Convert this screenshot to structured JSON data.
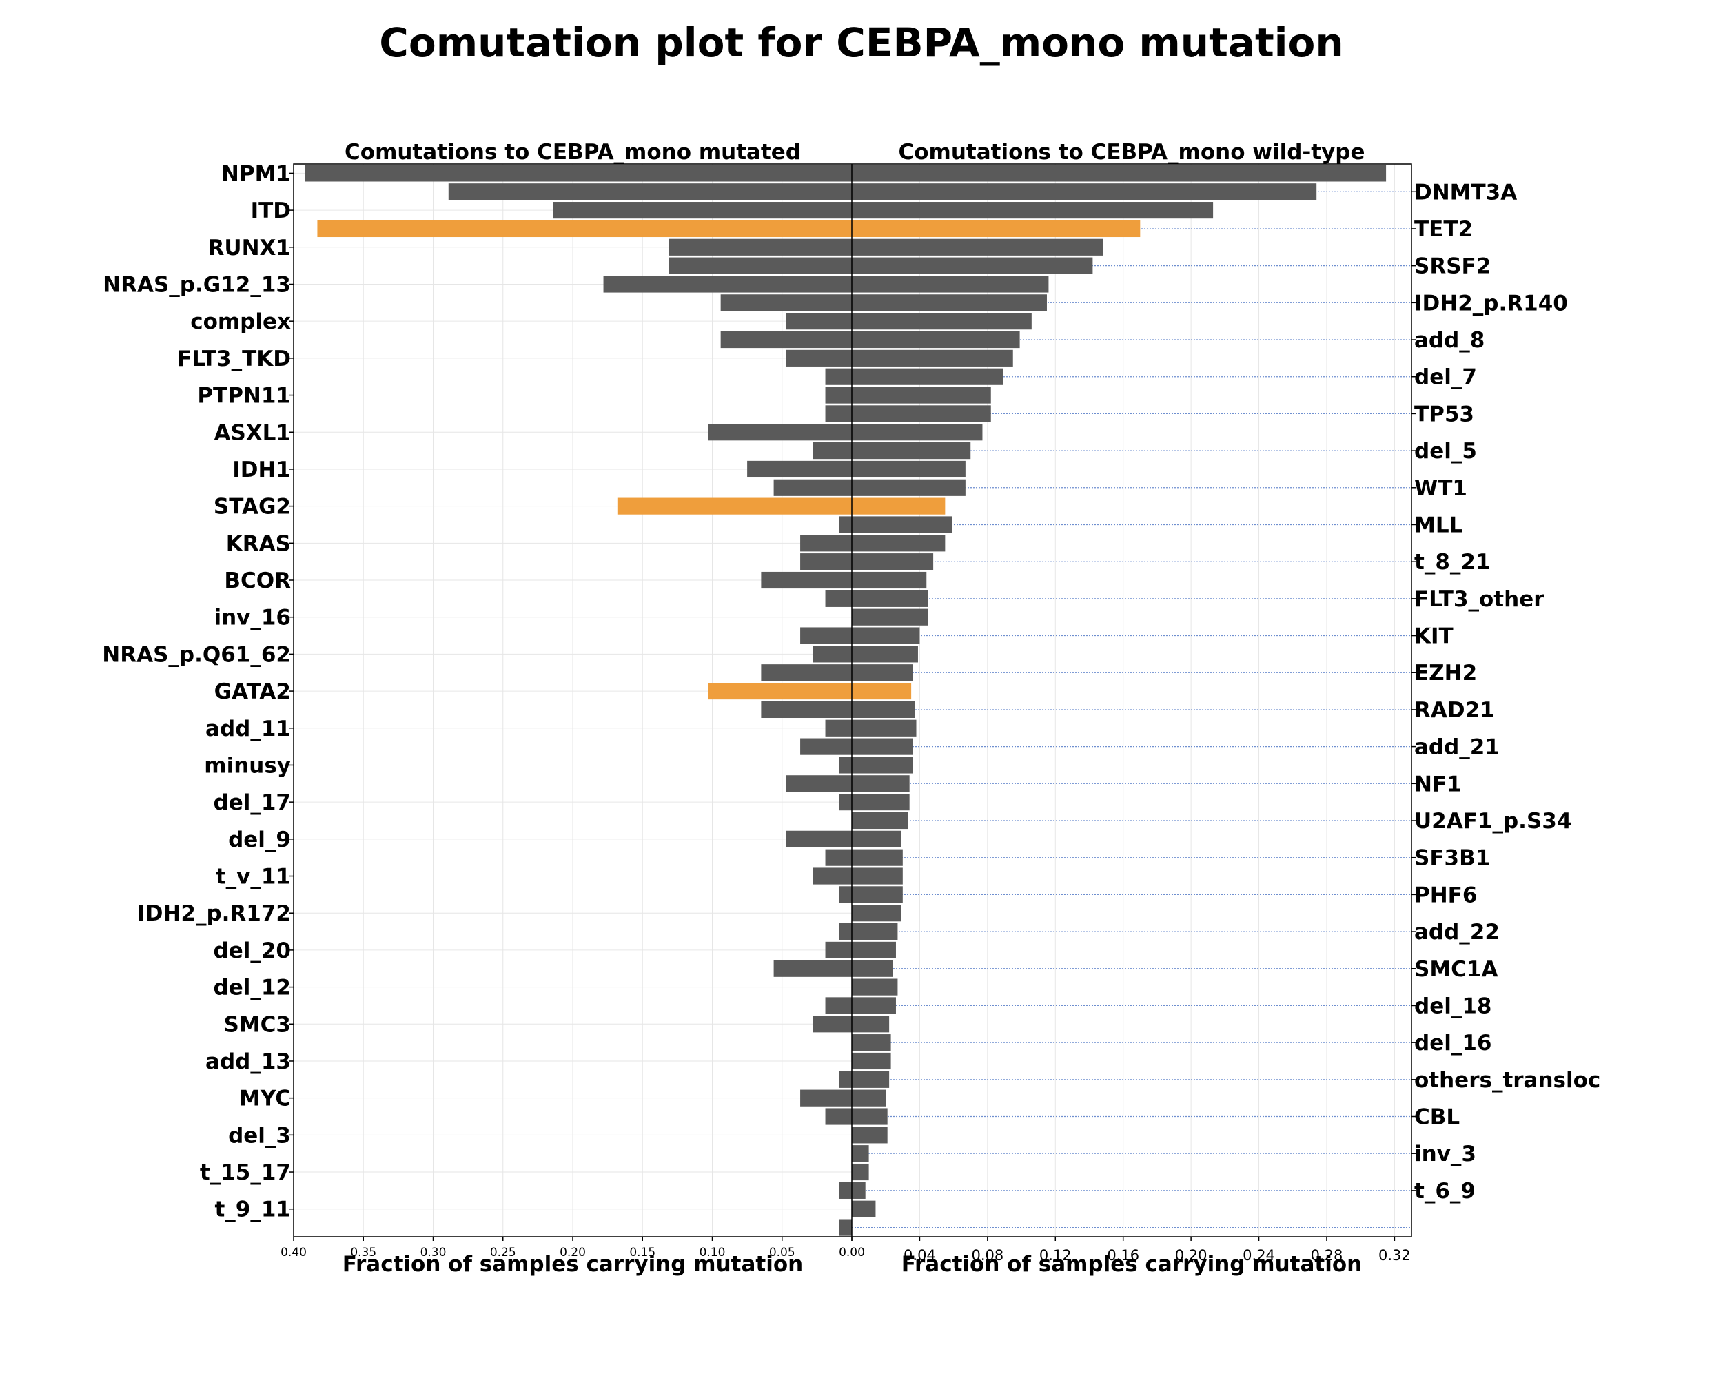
{
  "title": "Comutation plot for CEBPA_mono mutation",
  "colors": {
    "bar": "#5a5a5a",
    "highlight": "#ef9e3c",
    "grid": "#e6e6e6",
    "guide": "#6f8fcf"
  },
  "chart_data": [
    {
      "type": "bar",
      "orientation": "horizontal",
      "title": "Comutations to CEBPA_mono mutated",
      "xlabel": "Fraction of samples carrying mutation",
      "xlim": [
        0.4,
        0
      ],
      "xticks": [
        "0.40",
        "0.35",
        "0.30",
        "0.25",
        "0.20",
        "0.15",
        "0.10",
        "0.05",
        "0.00"
      ],
      "grid": true,
      "labels_left": [
        "NPM1",
        "ITD",
        "RUNX1",
        "NRAS_p.G12_13",
        "complex",
        "FLT3_TKD",
        "PTPN11",
        "ASXL1",
        "IDH1",
        "STAG2",
        "KRAS",
        "BCOR",
        "inv_16",
        "NRAS_p.Q61_62",
        "GATA2",
        "add_11",
        "minusy",
        "del_17",
        "del_9",
        "t_v_11",
        "IDH2_p.R172",
        "del_20",
        "del_12",
        "SMC3",
        "add_13",
        "MYC",
        "del_3",
        "t_15_17",
        "t_9_11"
      ],
      "values": [
        0.392,
        0.289,
        0.214,
        0.383,
        0.131,
        0.131,
        0.178,
        0.094,
        0.047,
        0.094,
        0.047,
        0.019,
        0.019,
        0.019,
        0.103,
        0.028,
        0.075,
        0.056,
        0.168,
        0.009,
        0.037,
        0.037,
        0.065,
        0.019,
        0.0,
        0.037,
        0.028,
        0.065,
        0.103,
        0.065,
        0.019,
        0.037,
        0.009,
        0.047,
        0.009,
        0.0,
        0.047,
        0.019,
        0.028,
        0.009,
        0.0,
        0.009,
        0.019,
        0.056,
        0.0,
        0.019,
        0.028,
        0.0,
        0.0,
        0.009,
        0.037,
        0.019,
        0.0,
        0.0,
        0.0,
        0.009,
        0.0,
        0.009
      ],
      "highlight_indices": [
        3,
        18,
        28
      ]
    },
    {
      "type": "bar",
      "orientation": "horizontal",
      "title": "Comutations to CEBPA_mono wild-type",
      "xlabel": "Fraction of samples carrying mutation",
      "xlim": [
        0,
        0.33
      ],
      "xticks": [
        "0.00",
        "0.04",
        "0.08",
        "0.12",
        "0.16",
        "0.20",
        "0.24",
        "0.28",
        "0.32"
      ],
      "grid": true,
      "labels_right": [
        "DNMT3A",
        "TET2",
        "SRSF2",
        "IDH2_p.R140",
        "add_8",
        "del_7",
        "TP53",
        "del_5",
        "WT1",
        "MLL",
        "t_8_21",
        "FLT3_other",
        "KIT",
        "EZH2",
        "RAD21",
        "add_21",
        "NF1",
        "U2AF1_p.S34",
        "SF3B1",
        "PHF6",
        "add_22",
        "SMC1A",
        "del_18",
        "del_16",
        "others_transloc",
        "CBL",
        "inv_3",
        "t_6_9"
      ],
      "values": [
        0.315,
        0.274,
        0.213,
        0.17,
        0.148,
        0.142,
        0.116,
        0.115,
        0.106,
        0.099,
        0.095,
        0.089,
        0.082,
        0.082,
        0.077,
        0.07,
        0.067,
        0.067,
        0.055,
        0.059,
        0.055,
        0.048,
        0.044,
        0.045,
        0.045,
        0.04,
        0.039,
        0.036,
        0.035,
        0.037,
        0.038,
        0.036,
        0.036,
        0.034,
        0.034,
        0.033,
        0.029,
        0.03,
        0.03,
        0.03,
        0.029,
        0.027,
        0.026,
        0.024,
        0.027,
        0.026,
        0.022,
        0.023,
        0.023,
        0.022,
        0.02,
        0.021,
        0.021,
        0.01,
        0.01,
        0.008,
        0.014
      ],
      "highlight_indices": [
        3,
        18,
        28
      ]
    }
  ]
}
